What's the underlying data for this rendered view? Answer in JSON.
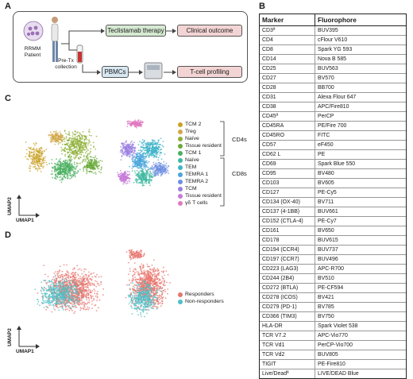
{
  "panel_letters": {
    "a": "A",
    "b": "B",
    "c": "C",
    "d": "D"
  },
  "panel_a": {
    "patient_label": "RRMM\nPatient",
    "therapy": "Teclistamab therapy",
    "clinical_outcome": "Clinical outcome",
    "pre_tx": "Pre-Tx\ncollection",
    "pbmcs": "PBMCs",
    "tcell_profiling": "T-cell profiling"
  },
  "panel_b": {
    "headers": [
      "Marker",
      "Fluorophore"
    ],
    "rows": [
      [
        "CD3ª",
        "BUV395"
      ],
      [
        "CD4",
        "cFlour V610"
      ],
      [
        "CD8",
        "Spark YG 593"
      ],
      [
        "CD14",
        "Nova B 585"
      ],
      [
        "CD25",
        "BUV563"
      ],
      [
        "CD27",
        "BV570"
      ],
      [
        "CD28",
        "BB700"
      ],
      [
        "CD31",
        "Alexa Flour 647"
      ],
      [
        "CD38",
        "APC/Fire810"
      ],
      [
        "CD45ª",
        "PerCP"
      ],
      [
        "CD45RA",
        "PE/Fire 700"
      ],
      [
        "CD45RO",
        "FITC"
      ],
      [
        "CD57",
        "eF450"
      ],
      [
        "CD62 L",
        "PE"
      ],
      [
        "CD69",
        "Spark Blue 550"
      ],
      [
        "CD95",
        "BV480"
      ],
      [
        "CD103",
        "BV605"
      ],
      [
        "CD127",
        "PE-Cy5"
      ],
      [
        "CD134 (OX-40)",
        "BV711"
      ],
      [
        "CD137 (4-1BB)",
        "BUV661"
      ],
      [
        "CD152 (CTLA-4)",
        "PE-Cy7"
      ],
      [
        "CD161",
        "BV650"
      ],
      [
        "CD178",
        "BUV615"
      ],
      [
        "CD194 (CCR4)",
        "BUV737"
      ],
      [
        "CD197 (CCR7)",
        "BUV496"
      ],
      [
        "CD223 (LAG3)",
        "APC-R700"
      ],
      [
        "CD244 (2B4)",
        "BV510"
      ],
      [
        "CD272 (BTLA)",
        "PE-CF594"
      ],
      [
        "CD278 (ICOS)",
        "BV421"
      ],
      [
        "CD279 (PD-1)",
        "BV785"
      ],
      [
        "CD366 (TIM3)",
        "BV750"
      ],
      [
        "HLA-DR",
        "Spark Violet 538"
      ],
      [
        "TCR V7.2",
        "APC-Vio770"
      ],
      [
        "TCR Vd1",
        "PerCP-Vio700"
      ],
      [
        "TCR Vd2",
        "BUV805"
      ],
      [
        "TIGIT",
        "PE-Fire810"
      ],
      [
        "Live/Deadª",
        "LIVE/DEAD Blue"
      ]
    ]
  },
  "panel_c": {
    "legend": [
      {
        "label": "TCM 2",
        "color": "#c9a227"
      },
      {
        "label": "Treg",
        "color": "#d3a84a"
      },
      {
        "label": "Naïve",
        "color": "#8fb03a"
      },
      {
        "label": "Tissue resident",
        "color": "#6aaa3a"
      },
      {
        "label": "TCM 1",
        "color": "#4bb060"
      },
      {
        "label": "Naïve",
        "color": "#3fb8a0"
      },
      {
        "label": "TEM",
        "color": "#3fb3c8"
      },
      {
        "label": "TEMRA 1",
        "color": "#4aa6dc"
      },
      {
        "label": "TEMRA 2",
        "color": "#6f8fe0"
      },
      {
        "label": "TCM",
        "color": "#9a7fe0"
      },
      {
        "label": "Tissue resident",
        "color": "#c57ad8"
      },
      {
        "label": "γδ T cells",
        "color": "#e07ac0"
      }
    ],
    "group_cd4": "CD4s",
    "group_cd8": "CD8s",
    "axis_y": "UMAP2",
    "axis_x": "UMAP1"
  },
  "panel_d": {
    "legend": [
      {
        "label": "Responders",
        "color": "#e8766d"
      },
      {
        "label": "Non-responders",
        "color": "#4fc0c8"
      }
    ],
    "axis_y": "UMAP2",
    "axis_x": "UMAP1"
  }
}
